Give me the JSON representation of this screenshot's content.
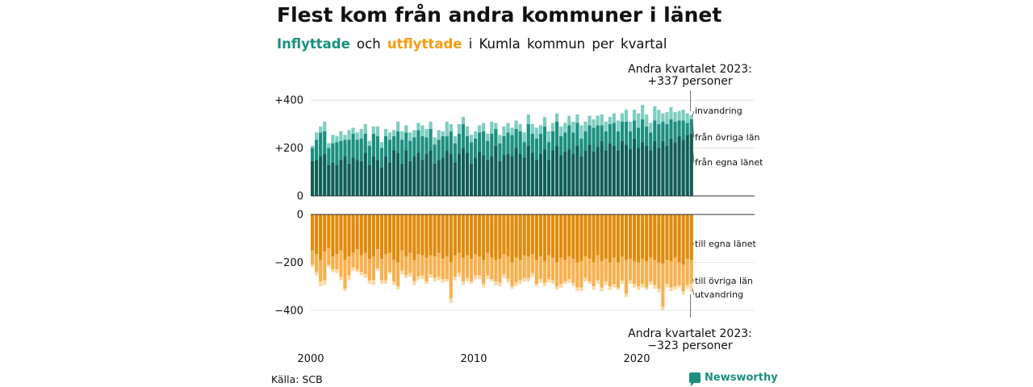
{
  "title": "Flest kom från andra kommuner i länet",
  "subtitle": {
    "part1": "Inflyttade",
    "part2": "och",
    "part3": "utflyttade",
    "part4": "i Kumla kommun per kvartal"
  },
  "source": "Källa: SCB",
  "brand": "Newsworthy",
  "colors": {
    "in_own": "#0f5e55",
    "in_other": "#1b8f80",
    "in_abroad": "#7dcdc0",
    "out_own": "#e08a0b",
    "out_other": "#f7b04e",
    "out_abroad": "#fbd8a3"
  },
  "chart_data": {
    "type": "bar",
    "stacked": true,
    "title": "Flest kom från andra kommuner i länet",
    "x_tick_labels": [
      "2000",
      "2010",
      "2020"
    ],
    "x_period": "kvartal 2000 Q1 – 2023 Q2",
    "upper": {
      "yticks": [
        "+400",
        "+200",
        "0"
      ],
      "ylim": [
        0,
        420
      ],
      "series": [
        {
          "name": "från egna länet",
          "values": [
            145,
            150,
            165,
            175,
            130,
            140,
            130,
            150,
            165,
            135,
            160,
            150,
            145,
            180,
            130,
            165,
            150,
            120,
            165,
            140,
            190,
            180,
            135,
            190,
            145,
            165,
            180,
            150,
            175,
            190,
            135,
            150,
            160,
            190,
            175,
            140,
            175,
            200,
            180,
            135,
            160,
            185,
            170,
            150,
            165,
            210,
            145,
            170,
            175,
            165,
            200,
            175,
            160,
            210,
            180,
            150,
            175,
            195,
            150,
            190,
            210,
            170,
            185,
            195,
            175,
            210,
            165,
            190,
            215,
            185,
            205,
            230,
            190,
            220,
            210,
            190,
            230,
            215,
            195,
            240,
            200,
            225,
            210,
            190,
            230,
            200,
            230,
            210,
            240,
            225,
            250,
            235,
            255,
            260
          ]
        },
        {
          "name": "från övriga län",
          "values": [
            55,
            85,
            100,
            95,
            70,
            80,
            95,
            80,
            70,
            100,
            100,
            85,
            95,
            80,
            80,
            95,
            100,
            80,
            85,
            95,
            60,
            90,
            100,
            75,
            85,
            80,
            95,
            100,
            70,
            90,
            80,
            85,
            90,
            60,
            95,
            80,
            85,
            100,
            70,
            90,
            80,
            80,
            100,
            80,
            95,
            70,
            75,
            80,
            90,
            90,
            80,
            95,
            65,
            90,
            80,
            90,
            85,
            95,
            75,
            80,
            100,
            80,
            80,
            100,
            90,
            95,
            75,
            80,
            80,
            100,
            90,
            65,
            80,
            80,
            95,
            80,
            80,
            95,
            75,
            75,
            85,
            95,
            80,
            75,
            85,
            100,
            80,
            90,
            80,
            85,
            65,
            80,
            50,
            60
          ]
        },
        {
          "name": "invandring",
          "values": [
            10,
            30,
            25,
            40,
            20,
            35,
            25,
            40,
            20,
            40,
            25,
            30,
            40,
            40,
            20,
            30,
            40,
            25,
            30,
            30,
            25,
            40,
            35,
            30,
            35,
            30,
            30,
            45,
            35,
            30,
            30,
            40,
            20,
            60,
            30,
            30,
            40,
            30,
            40,
            30,
            30,
            30,
            35,
            30,
            50,
            25,
            35,
            40,
            40,
            30,
            35,
            30,
            40,
            40,
            40,
            45,
            35,
            40,
            45,
            35,
            35,
            40,
            40,
            40,
            45,
            35,
            55,
            40,
            40,
            35,
            40,
            45,
            40,
            30,
            40,
            45,
            35,
            50,
            40,
            45,
            60,
            60,
            50,
            40,
            60,
            60,
            35,
            50,
            50,
            40,
            40,
            45,
            40,
            17
          ]
        }
      ]
    },
    "lower": {
      "yticks": [
        "0",
        "−200",
        "−400"
      ],
      "ylim": [
        -430,
        0
      ],
      "series": [
        {
          "name": "till egna länet",
          "values": [
            -150,
            -165,
            -190,
            -155,
            -140,
            -175,
            -165,
            -150,
            -190,
            -175,
            -160,
            -145,
            -170,
            -160,
            -185,
            -175,
            -145,
            -185,
            -165,
            -160,
            -190,
            -200,
            -150,
            -175,
            -160,
            -190,
            -165,
            -170,
            -180,
            -170,
            -175,
            -160,
            -185,
            -175,
            -200,
            -170,
            -160,
            -180,
            -170,
            -185,
            -165,
            -175,
            -190,
            -160,
            -180,
            -190,
            -185,
            -165,
            -175,
            -200,
            -180,
            -190,
            -170,
            -175,
            -165,
            -190,
            -175,
            -195,
            -170,
            -180,
            -200,
            -180,
            -190,
            -175,
            -185,
            -200,
            -195,
            -175,
            -185,
            -200,
            -170,
            -195,
            -185,
            -200,
            -180,
            -200,
            -175,
            -190,
            -185,
            -195,
            -200,
            -185,
            -195,
            -180,
            -190,
            -200,
            -205,
            -190,
            -195,
            -180,
            -200,
            -210,
            -185,
            -190
          ]
        },
        {
          "name": "till övriga län",
          "values": [
            -60,
            -75,
            -90,
            -120,
            -70,
            -55,
            -65,
            -110,
            -120,
            -80,
            -60,
            -85,
            -70,
            -90,
            -90,
            -100,
            -80,
            -90,
            -110,
            -80,
            -90,
            -100,
            -85,
            -80,
            -85,
            -90,
            -95,
            -85,
            -100,
            -80,
            -90,
            -100,
            -85,
            -95,
            -150,
            -90,
            -85,
            -100,
            -95,
            -95,
            -90,
            -80,
            -100,
            -95,
            -90,
            -90,
            -100,
            -85,
            -95,
            -100,
            -105,
            -85,
            -95,
            -90,
            -80,
            -100,
            -95,
            -90,
            -100,
            -95,
            -100,
            -110,
            -90,
            -95,
            -100,
            -105,
            -110,
            -90,
            -95,
            -100,
            -105,
            -110,
            -95,
            -100,
            -110,
            -105,
            -100,
            -140,
            -90,
            -95,
            -100,
            -105,
            -110,
            -100,
            -105,
            -110,
            -180,
            -100,
            -110,
            -120,
            -95,
            -110,
            -110,
            -100
          ]
        },
        {
          "name": "utvandring",
          "values": [
            -10,
            -15,
            -20,
            -20,
            -10,
            -10,
            -15,
            -15,
            -10,
            -20,
            -15,
            -10,
            -15,
            -15,
            -15,
            -20,
            -10,
            -15,
            -15,
            -10,
            -15,
            -15,
            -15,
            -10,
            -15,
            -15,
            -15,
            -15,
            -10,
            -15,
            -15,
            -15,
            -15,
            -10,
            -20,
            -15,
            -15,
            -15,
            -15,
            -10,
            -15,
            -15,
            -15,
            -15,
            -10,
            -15,
            -15,
            -15,
            -15,
            -10,
            -15,
            -15,
            -15,
            -15,
            -15,
            -10,
            -15,
            -15,
            -15,
            -15,
            -15,
            -15,
            -10,
            -15,
            -15,
            -15,
            -15,
            -15,
            -10,
            -15,
            -15,
            -15,
            -15,
            -15,
            -15,
            -10,
            -15,
            -15,
            -15,
            -15,
            -15,
            -15,
            -10,
            -15,
            -15,
            -15,
            -15,
            -15,
            -15,
            -15,
            -10,
            -15,
            -15,
            -33
          ]
        }
      ]
    },
    "series_labels_upper": [
      "invandring",
      "från övriga län",
      "från egna länet"
    ],
    "series_labels_lower": [
      "till egna länet",
      "till övriga län",
      "utvandring"
    ],
    "annotation_top": [
      "Andra kvartalet 2023:",
      "+337 personer"
    ],
    "annotation_bottom": [
      "Andra kvartalet 2023:",
      "−323 personer"
    ]
  }
}
